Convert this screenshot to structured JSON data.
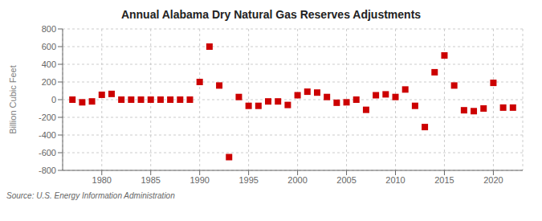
{
  "chart_data": {
    "type": "scatter",
    "title": "Annual Alabama Dry Natural Gas Reserves Adjustments",
    "y_label": "Billion Cubic Feet",
    "annotations": [
      "Source: U.S. Energy Information Administration"
    ],
    "x": [
      1977,
      1978,
      1979,
      1980,
      1981,
      1982,
      1983,
      1984,
      1985,
      1986,
      1987,
      1988,
      1989,
      1990,
      1991,
      1992,
      1993,
      1994,
      1995,
      1996,
      1997,
      1998,
      1999,
      2000,
      2001,
      2002,
      2003,
      2004,
      2005,
      2006,
      2007,
      2008,
      2009,
      2010,
      2011,
      2012,
      2013,
      2014,
      2015,
      2016,
      2017,
      2018,
      2019,
      2020,
      2021,
      2022
    ],
    "values": [
      0,
      -30,
      -20,
      55,
      65,
      0,
      0,
      0,
      0,
      0,
      0,
      0,
      0,
      200,
      600,
      160,
      -650,
      30,
      -70,
      -70,
      -20,
      -20,
      -60,
      50,
      90,
      80,
      30,
      -35,
      -30,
      0,
      -115,
      50,
      60,
      30,
      115,
      -70,
      -310,
      310,
      500,
      160,
      -120,
      -130,
      -100,
      190,
      -90,
      -90
    ],
    "color": "#cc0000",
    "marker": "square",
    "xlim": [
      1976,
      2023
    ],
    "xticks": [
      1980,
      1985,
      1990,
      1995,
      2000,
      2005,
      2010,
      2015,
      2020
    ],
    "ylim": [
      -800,
      800
    ],
    "yticks": [
      -800,
      -600,
      -400,
      -200,
      0,
      200,
      400,
      600,
      800
    ],
    "grid": true
  }
}
